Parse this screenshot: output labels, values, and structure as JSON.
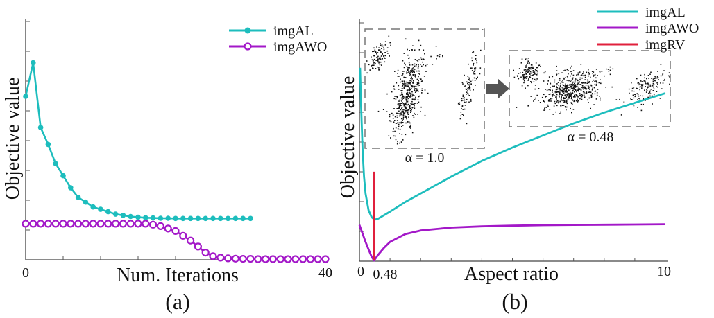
{
  "chart_data": [
    {
      "type": "line",
      "panel_label": "(a)",
      "xlabel": "Num. Iterations",
      "ylabel": "Objective value",
      "x_ticks": [
        {
          "value": 0,
          "label": "0"
        },
        {
          "value": 40,
          "label": "40"
        }
      ],
      "xlim": [
        0,
        40
      ],
      "ylim": [
        0,
        100
      ],
      "grid": false,
      "legend_position": "top-right",
      "series": [
        {
          "name": "imgAL",
          "color": "#1dbdbd",
          "marker": "filled-circle",
          "x": [
            0,
            1,
            2,
            3,
            4,
            5,
            6,
            7,
            8,
            9,
            10,
            11,
            12,
            13,
            14,
            15,
            16,
            17,
            18,
            19,
            20,
            21,
            22,
            23,
            24,
            25,
            26,
            27,
            28,
            29,
            30
          ],
          "y": [
            68,
            82,
            55,
            48,
            40,
            35,
            30,
            26,
            24,
            22,
            21,
            20,
            19,
            18.5,
            18,
            17.7,
            17.5,
            17.4,
            17.3,
            17.3,
            17.2,
            17.2,
            17.2,
            17.2,
            17.2,
            17.2,
            17.2,
            17.2,
            17.2,
            17.2,
            17.2
          ]
        },
        {
          "name": "imgAWO",
          "color": "#a318c8",
          "marker": "hollow-circle",
          "x": [
            0,
            1,
            2,
            3,
            4,
            5,
            6,
            7,
            8,
            9,
            10,
            11,
            12,
            13,
            14,
            15,
            16,
            17,
            18,
            19,
            20,
            21,
            22,
            23,
            24,
            25,
            26,
            27,
            28,
            29,
            30,
            31,
            32,
            33,
            34,
            35,
            36,
            37,
            38,
            39,
            40
          ],
          "y": [
            15,
            15,
            15,
            15,
            15,
            15,
            15,
            15,
            15,
            15,
            15,
            15,
            15,
            15,
            15,
            15,
            15,
            14.6,
            14,
            13,
            12,
            10,
            8,
            5.5,
            3,
            1.5,
            0.9,
            0.6,
            0.5,
            0.4,
            0.4,
            0.3,
            0.3,
            0.3,
            0.3,
            0.3,
            0.3,
            0.3,
            0.3,
            0.3,
            0.3
          ]
        }
      ]
    },
    {
      "type": "line",
      "panel_label": "(b)",
      "xlabel": "Aspect ratio",
      "ylabel": "Objective value",
      "x_ticks": [
        {
          "value": 0,
          "label": "0"
        },
        {
          "value": 0.48,
          "label": "0.48"
        },
        {
          "value": 10,
          "label": "10"
        }
      ],
      "xlim": [
        0,
        10
      ],
      "ylim": [
        0,
        100
      ],
      "grid": false,
      "legend_position": "top-right",
      "series": [
        {
          "name": "imgAL",
          "color": "#1dbdbd",
          "x": [
            0.02,
            0.05,
            0.1,
            0.15,
            0.2,
            0.3,
            0.4,
            0.5,
            0.6,
            0.8,
            1.0,
            1.5,
            2,
            3,
            4,
            5,
            6,
            7,
            8,
            9,
            10
          ],
          "y": [
            80,
            66,
            47,
            35,
            28,
            21,
            18.2,
            17.2,
            17.5,
            19,
            20.5,
            24.5,
            28,
            35,
            41.5,
            47,
            52,
            57,
            61.5,
            65.5,
            69.5
          ]
        },
        {
          "name": "imgAWO",
          "color": "#a318c8",
          "x": [
            0,
            0.1,
            0.2,
            0.3,
            0.4,
            0.48,
            0.6,
            0.8,
            1,
            1.5,
            2,
            3,
            4,
            5,
            6,
            7,
            8,
            9,
            10
          ],
          "y": [
            15,
            11.5,
            8,
            4.8,
            1.8,
            0.3,
            2.5,
            5.5,
            8,
            11.2,
            12.7,
            13.9,
            14.4,
            14.7,
            14.9,
            15,
            15.1,
            15.2,
            15.3
          ]
        },
        {
          "name": "imgRV",
          "color": "#e0203c",
          "x": [
            0.48,
            0.48
          ],
          "y": [
            0.3,
            37
          ]
        }
      ],
      "insets": [
        {
          "label": "α = 1.0"
        },
        {
          "label": "α = 0.48"
        }
      ]
    }
  ]
}
